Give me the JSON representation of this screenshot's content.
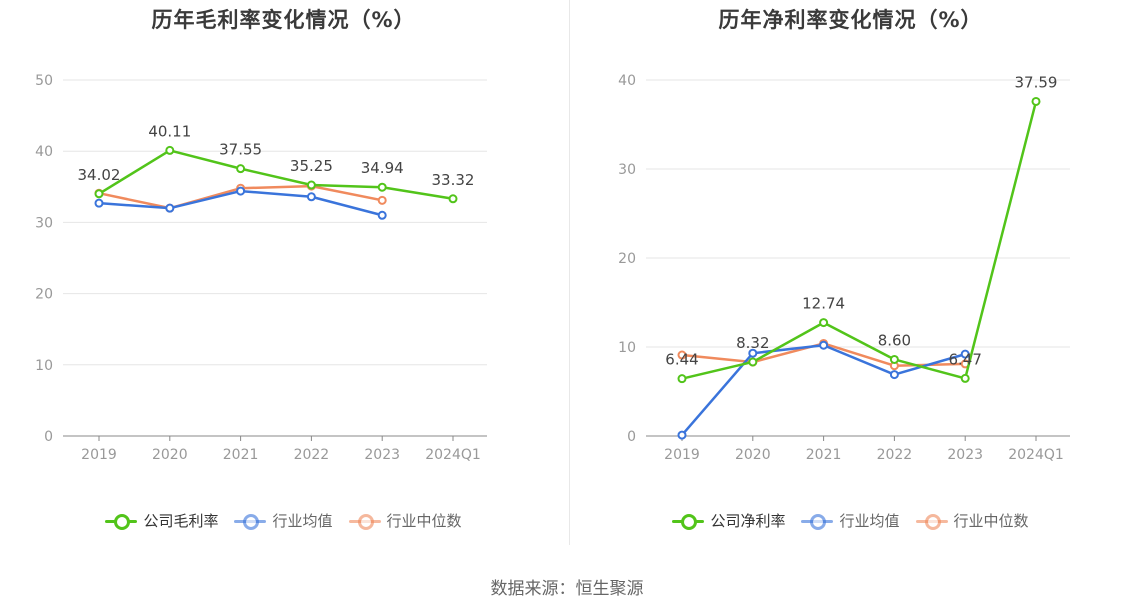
{
  "colors": {
    "company": "#52c41a",
    "industry_avg": "#3a74db",
    "industry_median": "#f08a5d",
    "grid": "#e6e6e6",
    "axis": "#999999"
  },
  "source": "数据来源：恒生聚源",
  "chart_data": [
    {
      "type": "line",
      "title": "历年毛利率变化情况（%）",
      "categories": [
        "2019",
        "2020",
        "2021",
        "2022",
        "2023",
        "2024Q1"
      ],
      "ylim": [
        0,
        50
      ],
      "yticks": [
        "0",
        "10",
        "20",
        "30",
        "40",
        "50"
      ],
      "grid": true,
      "legend_position": "bottom",
      "series": [
        {
          "name": "公司毛利率",
          "color_key": "company",
          "values": [
            34.02,
            40.11,
            37.55,
            35.25,
            34.94,
            33.32
          ],
          "labels": [
            "34.02",
            "40.11",
            "37.55",
            "35.25",
            "34.94",
            "33.32"
          ]
        },
        {
          "name": "行业均值",
          "color_key": "industry_avg",
          "values": [
            32.7,
            32.0,
            34.4,
            33.6,
            31.0,
            null
          ]
        },
        {
          "name": "行业中位数",
          "color_key": "industry_median",
          "values": [
            34.1,
            32.0,
            34.8,
            35.1,
            33.1,
            null
          ]
        }
      ]
    },
    {
      "type": "line",
      "title": "历年净利率变化情况（%）",
      "categories": [
        "2019",
        "2020",
        "2021",
        "2022",
        "2023",
        "2024Q1"
      ],
      "ylim": [
        0,
        40
      ],
      "yticks": [
        "0",
        "10",
        "20",
        "30",
        "40"
      ],
      "grid": true,
      "legend_position": "bottom",
      "series": [
        {
          "name": "公司净利率",
          "color_key": "company",
          "values": [
            6.44,
            8.32,
            12.74,
            8.6,
            6.47,
            37.59
          ],
          "labels": [
            "6.44",
            "8.32",
            "12.74",
            "8.60",
            "6.47",
            "37.59"
          ]
        },
        {
          "name": "行业均值",
          "color_key": "industry_avg",
          "values": [
            0.1,
            9.3,
            10.2,
            6.9,
            9.2,
            null
          ]
        },
        {
          "name": "行业中位数",
          "color_key": "industry_median",
          "values": [
            9.1,
            8.3,
            10.4,
            7.9,
            8.1,
            null
          ]
        }
      ]
    }
  ]
}
